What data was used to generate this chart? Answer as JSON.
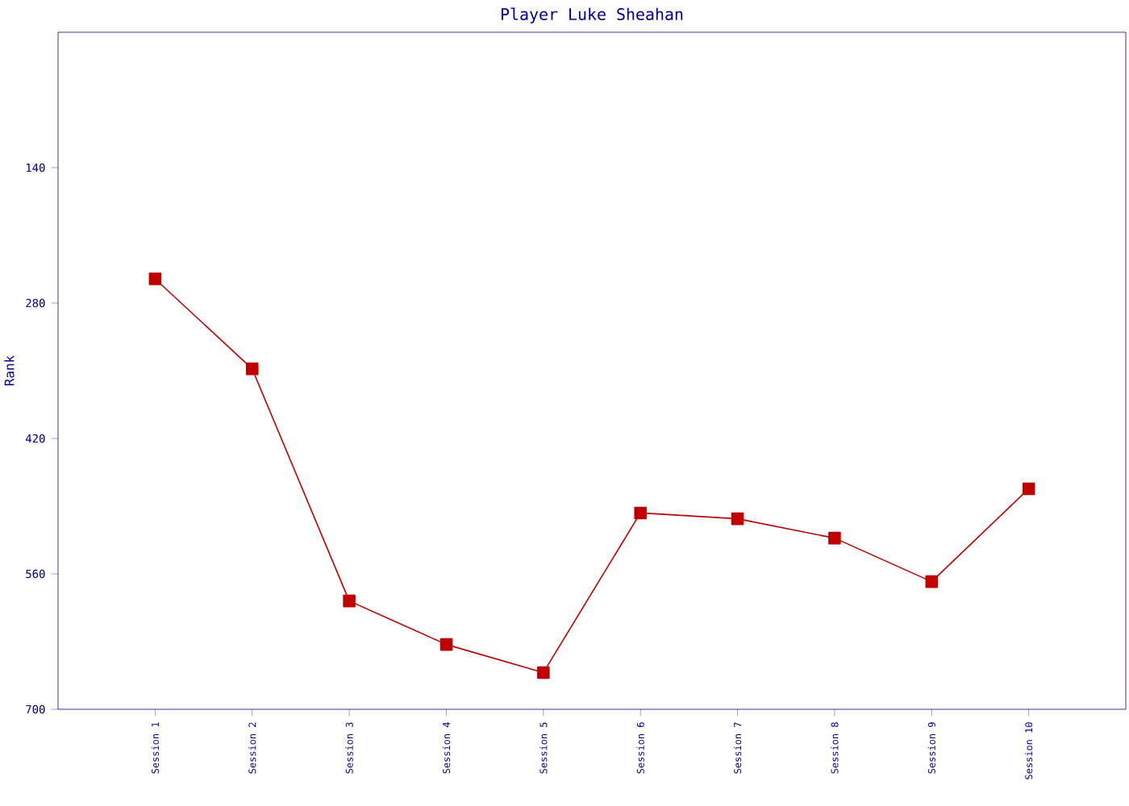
{
  "chart_data": {
    "type": "line",
    "title": "Player Luke Sheahan",
    "ylabel": "Rank",
    "categories": [
      "Session 1",
      "Session 2",
      "Session 3",
      "Session 4",
      "Session 5",
      "Session 6",
      "Session 7",
      "Session 8",
      "Session 9",
      "Session 10"
    ],
    "series": [
      {
        "color": "#c00000",
        "values": [
          255,
          348,
          588,
          633,
          662,
          497,
          503,
          523,
          568,
          472
        ]
      }
    ],
    "ylim": [
      700,
      0
    ],
    "yticks": [
      140,
      280,
      420,
      560,
      700
    ],
    "grid": false,
    "marker": "square",
    "line_style": "solid"
  }
}
